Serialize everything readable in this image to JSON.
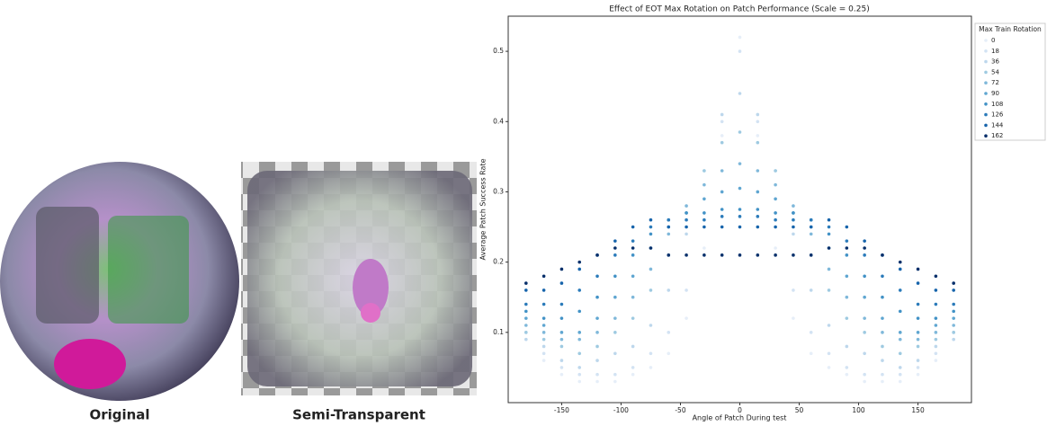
{
  "panels": [
    "Original",
    "Semi-Transparent"
  ],
  "chart_data": {
    "type": "scatter",
    "title": "Effect of EOT Max Rotation on Patch Performance (Scale = 0.25)",
    "x_label": "Angle of Patch During test",
    "y_label": "Average Patch Success Rate",
    "legend_title": "Max Train Rotation",
    "legend_position": "outside right",
    "xlim": [
      -195,
      195
    ],
    "xticks": [
      -150,
      -100,
      -50,
      0,
      50,
      100,
      150
    ],
    "ylim": [
      0,
      0.55
    ],
    "yticks": [
      0.1,
      0.2,
      0.3,
      0.4,
      0.5
    ],
    "x": [
      -180,
      -165,
      -150,
      -135,
      -120,
      -105,
      -90,
      -75,
      -60,
      -45,
      -30,
      -15,
      0,
      15,
      30,
      45,
      60,
      75,
      90,
      105,
      120,
      135,
      150,
      165,
      180
    ],
    "series": [
      {
        "name": "0",
        "color": "#e6eef8",
        "values": [
          0.09,
          0.06,
          0.04,
          0.03,
          0.03,
          0.03,
          0.04,
          0.05,
          0.07,
          0.12,
          0.22,
          0.38,
          0.52,
          0.38,
          0.22,
          0.12,
          0.07,
          0.05,
          0.04,
          0.03,
          0.03,
          0.03,
          0.04,
          0.06,
          0.09
        ]
      },
      {
        "name": "18",
        "color": "#d3e3f3",
        "values": [
          0.1,
          0.07,
          0.05,
          0.04,
          0.04,
          0.04,
          0.05,
          0.07,
          0.1,
          0.16,
          0.27,
          0.4,
          0.5,
          0.4,
          0.27,
          0.16,
          0.1,
          0.07,
          0.05,
          0.04,
          0.04,
          0.04,
          0.05,
          0.07,
          0.1
        ]
      },
      {
        "name": "36",
        "color": "#bdd7ec",
        "values": [
          0.09,
          0.08,
          0.06,
          0.05,
          0.06,
          0.07,
          0.08,
          0.11,
          0.16,
          0.24,
          0.33,
          0.41,
          0.44,
          0.41,
          0.33,
          0.24,
          0.16,
          0.11,
          0.08,
          0.07,
          0.06,
          0.05,
          0.06,
          0.08,
          0.09
        ]
      },
      {
        "name": "54",
        "color": "#9ecae1",
        "values": [
          0.1,
          0.09,
          0.08,
          0.07,
          0.08,
          0.1,
          0.12,
          0.16,
          0.21,
          0.27,
          0.33,
          0.37,
          0.385,
          0.37,
          0.33,
          0.27,
          0.21,
          0.16,
          0.12,
          0.1,
          0.08,
          0.07,
          0.08,
          0.09,
          0.1
        ]
      },
      {
        "name": "72",
        "color": "#7fb8da",
        "values": [
          0.11,
          0.1,
          0.09,
          0.09,
          0.1,
          0.12,
          0.15,
          0.19,
          0.24,
          0.28,
          0.31,
          0.33,
          0.34,
          0.33,
          0.31,
          0.28,
          0.24,
          0.19,
          0.15,
          0.12,
          0.1,
          0.09,
          0.09,
          0.1,
          0.11
        ]
      },
      {
        "name": "90",
        "color": "#5fa6d1",
        "values": [
          0.12,
          0.11,
          0.1,
          0.1,
          0.12,
          0.15,
          0.18,
          0.22,
          0.25,
          0.27,
          0.29,
          0.3,
          0.305,
          0.3,
          0.29,
          0.27,
          0.25,
          0.22,
          0.18,
          0.15,
          0.12,
          0.1,
          0.1,
          0.11,
          0.12
        ]
      },
      {
        "name": "108",
        "color": "#4292c6",
        "values": [
          0.13,
          0.12,
          0.12,
          0.13,
          0.15,
          0.18,
          0.21,
          0.24,
          0.26,
          0.27,
          0.27,
          0.275,
          0.275,
          0.275,
          0.27,
          0.27,
          0.26,
          0.24,
          0.21,
          0.18,
          0.15,
          0.13,
          0.12,
          0.12,
          0.13
        ]
      },
      {
        "name": "126",
        "color": "#2b7bba",
        "values": [
          0.14,
          0.14,
          0.14,
          0.16,
          0.18,
          0.21,
          0.23,
          0.25,
          0.26,
          0.26,
          0.26,
          0.265,
          0.265,
          0.265,
          0.26,
          0.26,
          0.26,
          0.25,
          0.23,
          0.21,
          0.18,
          0.16,
          0.14,
          0.14,
          0.14
        ]
      },
      {
        "name": "144",
        "color": "#1764ab",
        "values": [
          0.16,
          0.16,
          0.17,
          0.19,
          0.21,
          0.23,
          0.25,
          0.26,
          0.25,
          0.25,
          0.25,
          0.25,
          0.25,
          0.25,
          0.25,
          0.25,
          0.25,
          0.26,
          0.25,
          0.23,
          0.21,
          0.19,
          0.17,
          0.16,
          0.16
        ]
      },
      {
        "name": "162",
        "color": "#08306b",
        "values": [
          0.17,
          0.18,
          0.19,
          0.2,
          0.21,
          0.22,
          0.22,
          0.22,
          0.21,
          0.21,
          0.21,
          0.21,
          0.21,
          0.21,
          0.21,
          0.21,
          0.21,
          0.22,
          0.22,
          0.22,
          0.21,
          0.2,
          0.19,
          0.18,
          0.17
        ]
      }
    ]
  }
}
